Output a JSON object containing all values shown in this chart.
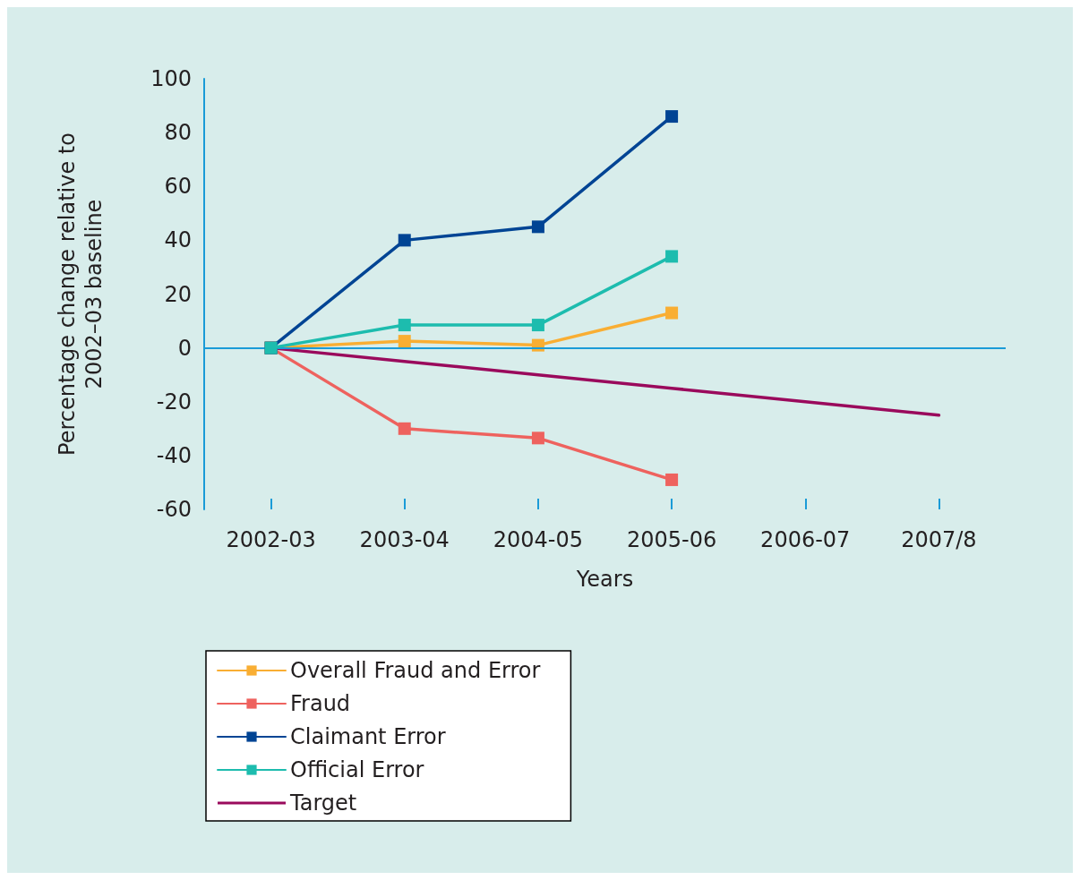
{
  "chart_data": {
    "type": "line",
    "xlabel": "Years",
    "ylabel": "Percentage change relative to\n2002–03 baseline",
    "categories": [
      "2002-03",
      "2003-04",
      "2004-05",
      "2005-06",
      "2006-07",
      "2007/8"
    ],
    "ylim": [
      -60,
      100
    ],
    "yticks": [
      -60,
      -40,
      -20,
      0,
      20,
      40,
      60,
      80,
      100
    ],
    "grid": false,
    "ref_lines": [
      {
        "axis": "y",
        "value": 0,
        "color": "#1a9bd7"
      }
    ],
    "legend": "bottom left",
    "marker": "square",
    "line_style": "solid",
    "series": [
      {
        "name": "Overall Fraud and Error",
        "color": "#f9ae33",
        "values": [
          0,
          2.5,
          1,
          13,
          null,
          null
        ]
      },
      {
        "name": "Fraud",
        "color": "#ee625e",
        "values": [
          0,
          -30,
          -33.5,
          -49,
          null,
          null
        ]
      },
      {
        "name": "Claimant Error",
        "color": "#004494",
        "values": [
          0,
          40,
          45,
          86,
          null,
          null
        ]
      },
      {
        "name": "Official Error",
        "color": "#1dbcae",
        "values": [
          0,
          8.5,
          8.5,
          34,
          null,
          null
        ]
      },
      {
        "name": "Target",
        "color": "#9a0a5c",
        "marker": "none",
        "values": [
          0,
          -5,
          -10,
          -15,
          -20,
          -25
        ]
      }
    ]
  }
}
